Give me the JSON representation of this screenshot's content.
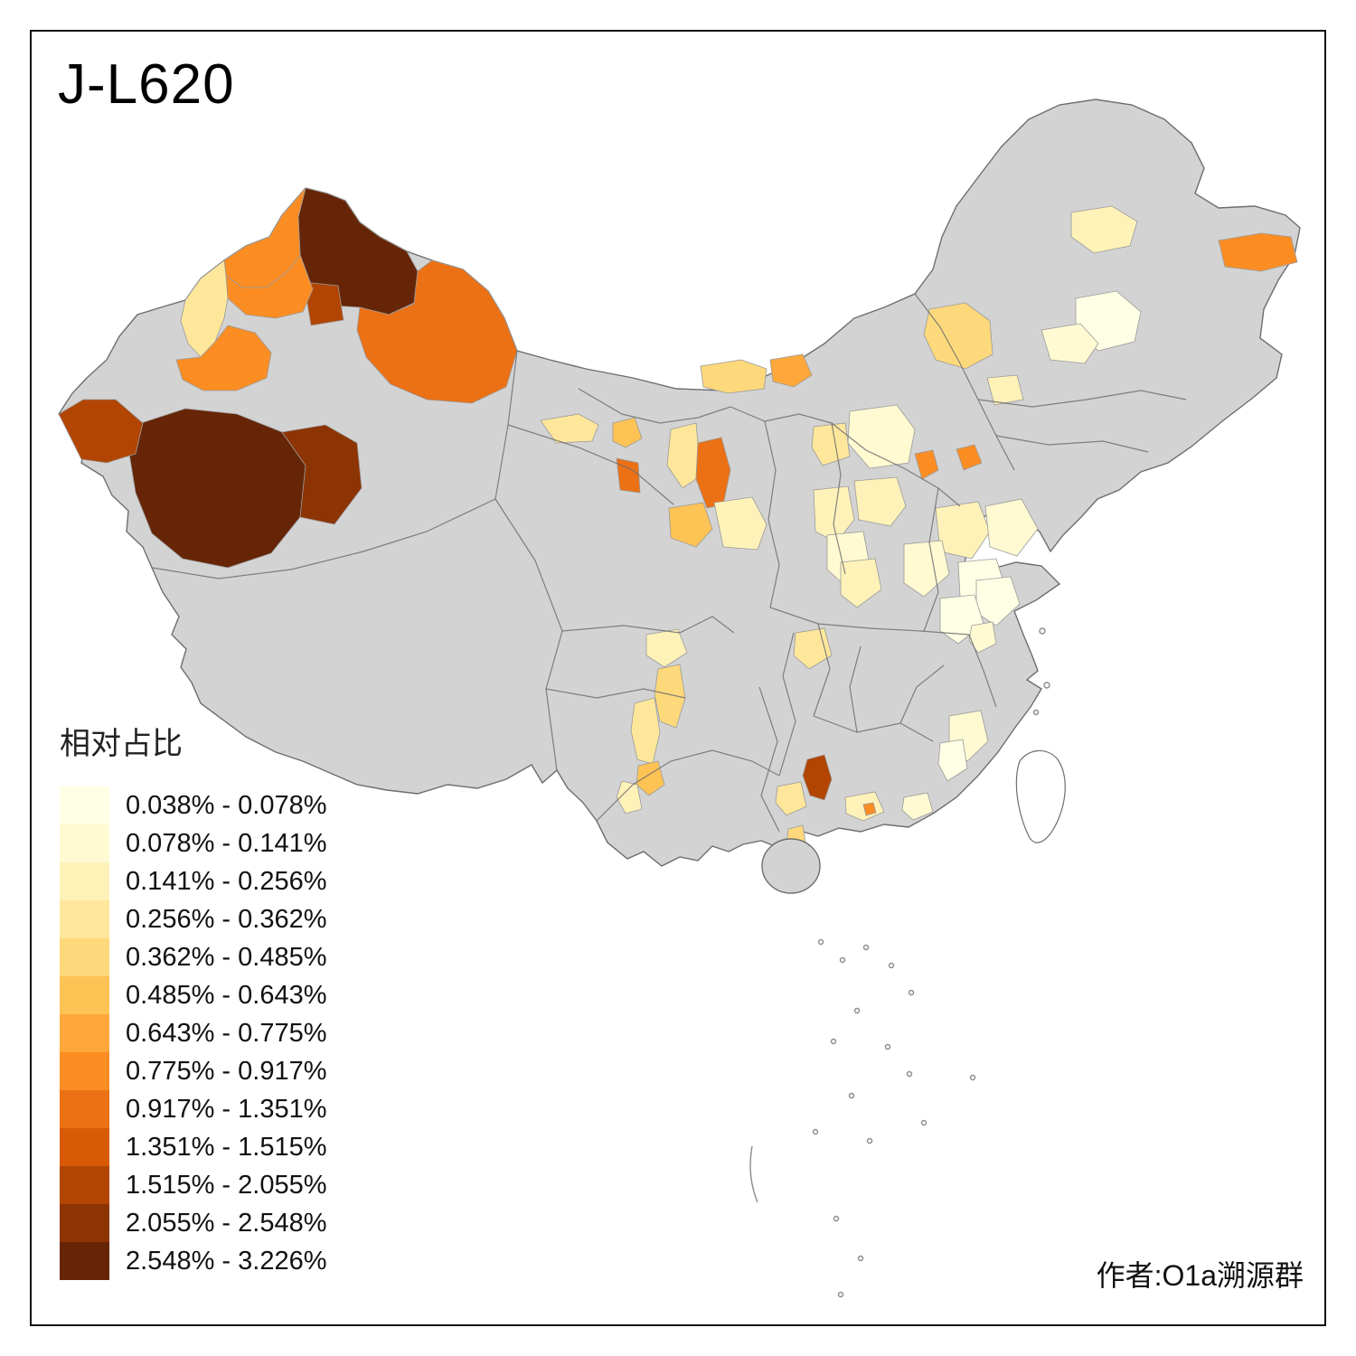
{
  "title": "J-L620",
  "attribution": "作者:O1a溯源群",
  "legend": {
    "title": "相对占比",
    "classes": [
      {
        "label": "0.038% - 0.078%",
        "color": "#FFFFE5"
      },
      {
        "label": "0.078% - 0.141%",
        "color": "#FFFAD2"
      },
      {
        "label": "0.141% - 0.256%",
        "color": "#FFF2B9"
      },
      {
        "label": "0.256% - 0.362%",
        "color": "#FEE79B"
      },
      {
        "label": "0.362% - 0.485%",
        "color": "#FED97B"
      },
      {
        "label": "0.485% - 0.643%",
        "color": "#FEC355"
      },
      {
        "label": "0.643% - 0.775%",
        "color": "#FEA83B"
      },
      {
        "label": "0.775% - 0.917%",
        "color": "#FB8D23"
      },
      {
        "label": "0.917% - 1.351%",
        "color": "#EC7014"
      },
      {
        "label": "1.351% - 1.515%",
        "color": "#D85A07"
      },
      {
        "label": "1.515% - 2.055%",
        "color": "#B24502"
      },
      {
        "label": "2.055% - 2.548%",
        "color": "#8D3404"
      },
      {
        "label": "2.548% - 3.226%",
        "color": "#662506"
      }
    ]
  },
  "map": {
    "base_fill": "#D3D3D3",
    "border_color": "#6E6E6E",
    "background": "#FFFFFF"
  }
}
